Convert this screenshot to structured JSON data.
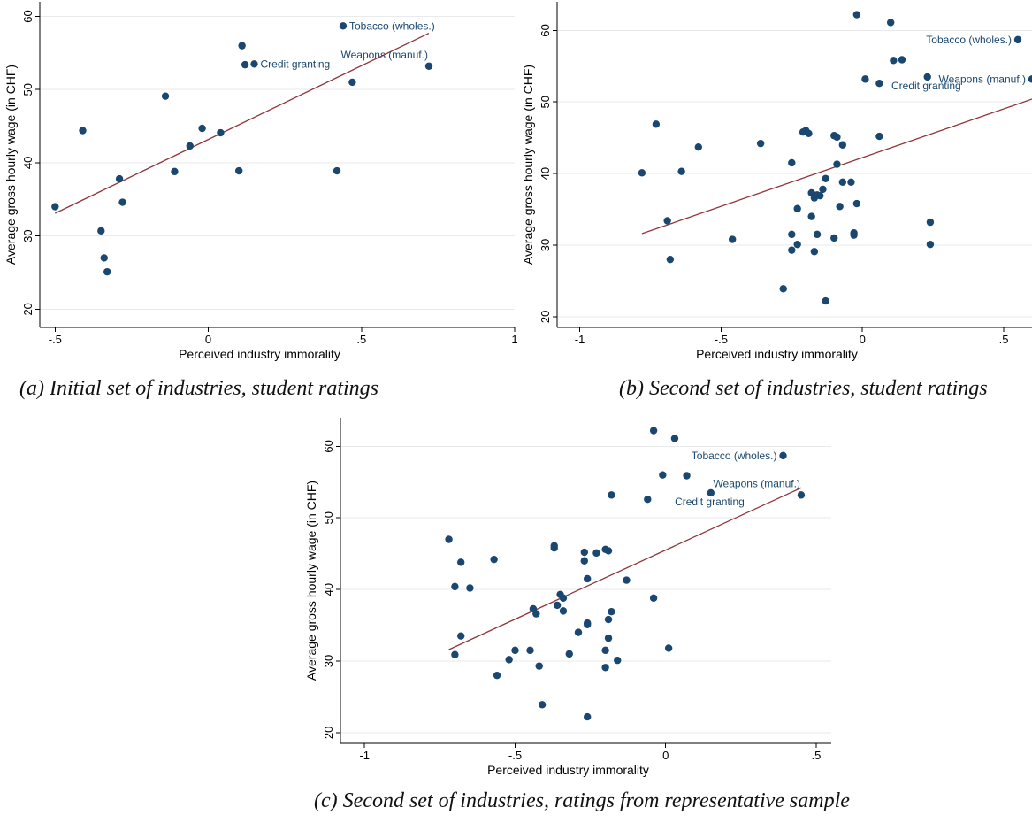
{
  "colors": {
    "point": "#1a476f",
    "fit_line": "#90353b",
    "grid": "#e8eaec"
  },
  "chart_data": [
    {
      "type": "scatter",
      "caption": "(a) Initial set of industries, student ratings",
      "xlabel": "Perceived industry immorality",
      "ylabel": "Average gross hourly wage (in CHF)",
      "xlim": [
        -0.5,
        1
      ],
      "ylim": [
        20,
        60
      ],
      "x_ticks": [
        -0.5,
        0,
        0.5,
        1
      ],
      "x_tick_labels": [
        "-.5",
        "0",
        ".5",
        "1"
      ],
      "y_ticks": [
        20,
        30,
        40,
        50,
        60
      ],
      "y_tick_labels": [
        "20",
        "30",
        "40",
        "50",
        "60"
      ],
      "grid": "horizontal",
      "points": [
        {
          "x": -0.5,
          "y": 34.0
        },
        {
          "x": -0.41,
          "y": 44.4
        },
        {
          "x": -0.35,
          "y": 30.7
        },
        {
          "x": -0.34,
          "y": 27.0
        },
        {
          "x": -0.33,
          "y": 25.1
        },
        {
          "x": -0.29,
          "y": 37.8
        },
        {
          "x": -0.28,
          "y": 34.6
        },
        {
          "x": -0.14,
          "y": 49.1
        },
        {
          "x": -0.11,
          "y": 38.8
        },
        {
          "x": -0.02,
          "y": 44.7
        },
        {
          "x": -0.06,
          "y": 42.3
        },
        {
          "x": 0.04,
          "y": 44.1
        },
        {
          "x": 0.1,
          "y": 38.9
        },
        {
          "x": 0.11,
          "y": 56.0
        },
        {
          "x": 0.12,
          "y": 53.4
        },
        {
          "x": 0.15,
          "y": 53.5
        },
        {
          "x": 0.42,
          "y": 38.9
        },
        {
          "x": 0.44,
          "y": 58.7
        },
        {
          "x": 0.47,
          "y": 51.0
        },
        {
          "x": 0.72,
          "y": 53.2
        }
      ],
      "annotations": [
        {
          "text": "Tobacco (wholes.)",
          "x": 0.44,
          "y": 58.7,
          "side": "right"
        },
        {
          "text": "Credit granting",
          "x": 0.15,
          "y": 53.5,
          "side": "right"
        },
        {
          "text": "Weapons (manuf.)",
          "x": 0.72,
          "y": 53.2,
          "side": "above"
        }
      ],
      "fit_line": {
        "x": [
          -0.5,
          0.72
        ],
        "y": [
          33.1,
          57.7
        ]
      }
    },
    {
      "type": "scatter",
      "caption": "(b) Second set of industries, student ratings",
      "xlabel": "Perceived industry immorality",
      "ylabel": "Average gross hourly wage (in CHF)",
      "xlim": [
        -1,
        0.6
      ],
      "ylim": [
        20,
        60
      ],
      "x_ticks": [
        -1,
        -0.5,
        0,
        0.5
      ],
      "x_tick_labels": [
        "-1",
        "-.5",
        "0",
        ".5"
      ],
      "y_ticks": [
        20,
        30,
        40,
        50,
        60
      ],
      "y_tick_labels": [
        "20",
        "30",
        "40",
        "50",
        "60"
      ],
      "grid": "horizontal",
      "points": [
        {
          "x": -0.78,
          "y": 40.1
        },
        {
          "x": -0.73,
          "y": 46.9
        },
        {
          "x": -0.69,
          "y": 33.4
        },
        {
          "x": -0.68,
          "y": 28.0
        },
        {
          "x": -0.64,
          "y": 40.3
        },
        {
          "x": -0.58,
          "y": 43.7
        },
        {
          "x": -0.46,
          "y": 30.8
        },
        {
          "x": -0.36,
          "y": 44.2
        },
        {
          "x": -0.28,
          "y": 23.9
        },
        {
          "x": -0.25,
          "y": 41.5
        },
        {
          "x": -0.25,
          "y": 31.5
        },
        {
          "x": -0.25,
          "y": 29.3
        },
        {
          "x": -0.23,
          "y": 30.1
        },
        {
          "x": -0.23,
          "y": 35.1
        },
        {
          "x": -0.21,
          "y": 45.8
        },
        {
          "x": -0.2,
          "y": 46.0
        },
        {
          "x": -0.19,
          "y": 45.6
        },
        {
          "x": -0.18,
          "y": 37.3
        },
        {
          "x": -0.18,
          "y": 34.0
        },
        {
          "x": -0.17,
          "y": 36.6
        },
        {
          "x": -0.17,
          "y": 29.1
        },
        {
          "x": -0.16,
          "y": 31.5
        },
        {
          "x": -0.16,
          "y": 37.0
        },
        {
          "x": -0.15,
          "y": 36.9
        },
        {
          "x": -0.14,
          "y": 37.8
        },
        {
          "x": -0.13,
          "y": 39.3
        },
        {
          "x": -0.13,
          "y": 22.2
        },
        {
          "x": -0.1,
          "y": 31.0
        },
        {
          "x": -0.1,
          "y": 45.3
        },
        {
          "x": -0.09,
          "y": 45.1
        },
        {
          "x": -0.09,
          "y": 41.3
        },
        {
          "x": -0.08,
          "y": 35.4
        },
        {
          "x": -0.07,
          "y": 44.0
        },
        {
          "x": -0.07,
          "y": 38.8
        },
        {
          "x": -0.04,
          "y": 38.8
        },
        {
          "x": -0.03,
          "y": 31.7
        },
        {
          "x": -0.03,
          "y": 31.4
        },
        {
          "x": -0.02,
          "y": 35.8
        },
        {
          "x": -0.02,
          "y": 62.2
        },
        {
          "x": 0.01,
          "y": 53.2
        },
        {
          "x": 0.06,
          "y": 52.6
        },
        {
          "x": 0.06,
          "y": 45.2
        },
        {
          "x": 0.1,
          "y": 61.1
        },
        {
          "x": 0.11,
          "y": 55.8
        },
        {
          "x": 0.14,
          "y": 55.9
        },
        {
          "x": 0.23,
          "y": 53.5
        },
        {
          "x": 0.24,
          "y": 33.2
        },
        {
          "x": 0.24,
          "y": 30.1
        },
        {
          "x": 0.55,
          "y": 58.7
        },
        {
          "x": 0.6,
          "y": 53.2
        }
      ],
      "annotations": [
        {
          "text": "Tobacco (wholes.)",
          "x": 0.55,
          "y": 58.7,
          "side": "left"
        },
        {
          "text": "Weapons (manuf.)",
          "x": 0.6,
          "y": 53.2,
          "side": "left"
        },
        {
          "text": "Credit granting",
          "x": 0.23,
          "y": 53.5,
          "side": "below-left"
        }
      ],
      "fit_line": {
        "x": [
          -0.78,
          0.6
        ],
        "y": [
          31.6,
          50.4
        ]
      }
    },
    {
      "type": "scatter",
      "caption": "(c) Second set of industries, ratings from representative sample",
      "xlabel": "Perceived industry immorality",
      "ylabel": "Average gross hourly wage (in CHF)",
      "xlim": [
        -1,
        0.5
      ],
      "ylim": [
        20,
        60
      ],
      "x_ticks": [
        -1,
        -0.5,
        0,
        0.5
      ],
      "x_tick_labels": [
        "-1",
        "-.5",
        "0",
        ".5"
      ],
      "y_ticks": [
        20,
        30,
        40,
        50,
        60
      ],
      "y_tick_labels": [
        "20",
        "30",
        "40",
        "50",
        "60"
      ],
      "grid": "horizontal",
      "points": [
        {
          "x": -0.72,
          "y": 47.0
        },
        {
          "x": -0.7,
          "y": 40.4
        },
        {
          "x": -0.7,
          "y": 30.9
        },
        {
          "x": -0.68,
          "y": 43.8
        },
        {
          "x": -0.68,
          "y": 33.5
        },
        {
          "x": -0.65,
          "y": 40.2
        },
        {
          "x": -0.57,
          "y": 44.2
        },
        {
          "x": -0.56,
          "y": 28.0
        },
        {
          "x": -0.52,
          "y": 30.2
        },
        {
          "x": -0.5,
          "y": 31.5
        },
        {
          "x": -0.45,
          "y": 31.5
        },
        {
          "x": -0.44,
          "y": 37.3
        },
        {
          "x": -0.43,
          "y": 36.6
        },
        {
          "x": -0.42,
          "y": 29.3
        },
        {
          "x": -0.41,
          "y": 23.9
        },
        {
          "x": -0.37,
          "y": 46.1
        },
        {
          "x": -0.37,
          "y": 45.8
        },
        {
          "x": -0.36,
          "y": 37.8
        },
        {
          "x": -0.35,
          "y": 39.3
        },
        {
          "x": -0.34,
          "y": 38.8
        },
        {
          "x": -0.34,
          "y": 37.0
        },
        {
          "x": -0.32,
          "y": 31.0
        },
        {
          "x": -0.29,
          "y": 34.0
        },
        {
          "x": -0.27,
          "y": 45.2
        },
        {
          "x": -0.27,
          "y": 44.0
        },
        {
          "x": -0.26,
          "y": 41.5
        },
        {
          "x": -0.26,
          "y": 35.3
        },
        {
          "x": -0.26,
          "y": 35.1
        },
        {
          "x": -0.26,
          "y": 22.2
        },
        {
          "x": -0.23,
          "y": 45.1
        },
        {
          "x": -0.2,
          "y": 45.6
        },
        {
          "x": -0.2,
          "y": 31.5
        },
        {
          "x": -0.2,
          "y": 29.1
        },
        {
          "x": -0.19,
          "y": 45.4
        },
        {
          "x": -0.19,
          "y": 35.8
        },
        {
          "x": -0.19,
          "y": 33.2
        },
        {
          "x": -0.18,
          "y": 53.2
        },
        {
          "x": -0.18,
          "y": 36.9
        },
        {
          "x": -0.16,
          "y": 30.1
        },
        {
          "x": -0.13,
          "y": 41.3
        },
        {
          "x": -0.06,
          "y": 52.6
        },
        {
          "x": -0.04,
          "y": 62.2
        },
        {
          "x": -0.04,
          "y": 38.8
        },
        {
          "x": -0.01,
          "y": 56.0
        },
        {
          "x": 0.01,
          "y": 31.8
        },
        {
          "x": 0.03,
          "y": 61.1
        },
        {
          "x": 0.07,
          "y": 55.9
        },
        {
          "x": 0.15,
          "y": 53.5
        },
        {
          "x": 0.39,
          "y": 58.7
        },
        {
          "x": 0.45,
          "y": 53.2
        }
      ],
      "annotations": [
        {
          "text": "Tobacco (wholes.)",
          "x": 0.39,
          "y": 58.7,
          "side": "left"
        },
        {
          "text": "Weapons (manuf.)",
          "x": 0.45,
          "y": 53.2,
          "side": "above"
        },
        {
          "text": "Credit granting",
          "x": 0.15,
          "y": 53.5,
          "side": "below-left"
        }
      ],
      "fit_line": {
        "x": [
          -0.72,
          0.45
        ],
        "y": [
          31.6,
          54.2
        ]
      }
    }
  ]
}
